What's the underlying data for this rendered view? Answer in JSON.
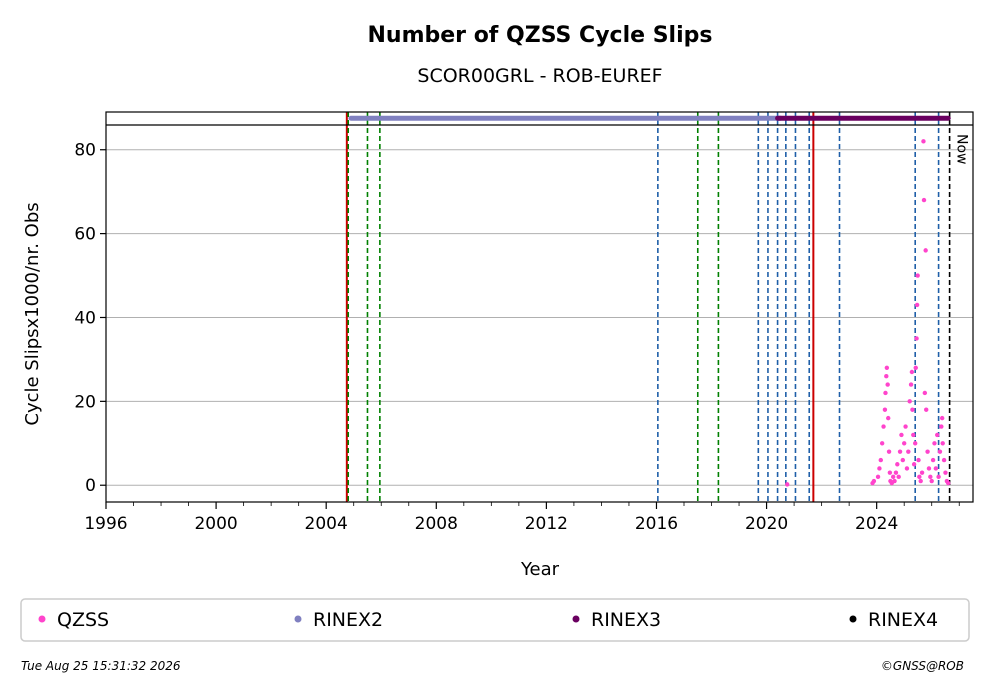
{
  "chart_data": {
    "type": "scatter",
    "title": "Number of QZSS Cycle Slips",
    "subtitle": "SCOR00GRL - ROB-EUREF",
    "xlabel": "Year",
    "ylabel": "Cycle Slipsx1000/nr. Obs",
    "xlim": [
      1996,
      2027.5
    ],
    "ylim": [
      -4,
      89
    ],
    "x_ticks": [
      1996,
      2000,
      2004,
      2008,
      2012,
      2016,
      2020,
      2024
    ],
    "y_ticks": [
      0,
      20,
      40,
      60,
      80
    ],
    "grid": "horizontal",
    "now_label": "Now",
    "now_year": 2026.65,
    "vlines": [
      {
        "x": 2004.75,
        "color": "#cc0000",
        "style": "solid"
      },
      {
        "x": 2004.8,
        "color": "#008000",
        "style": "dashed"
      },
      {
        "x": 2005.5,
        "color": "#008000",
        "style": "dashed"
      },
      {
        "x": 2005.95,
        "color": "#008000",
        "style": "dashed"
      },
      {
        "x": 2016.05,
        "color": "#1f5fa8",
        "style": "dashed"
      },
      {
        "x": 2017.5,
        "color": "#008000",
        "style": "dashed"
      },
      {
        "x": 2018.25,
        "color": "#008000",
        "style": "dashed"
      },
      {
        "x": 2019.7,
        "color": "#1f5fa8",
        "style": "dashed"
      },
      {
        "x": 2020.05,
        "color": "#1f5fa8",
        "style": "dashed"
      },
      {
        "x": 2020.4,
        "color": "#1f5fa8",
        "style": "dashed"
      },
      {
        "x": 2020.7,
        "color": "#1f5fa8",
        "style": "dashed"
      },
      {
        "x": 2021.05,
        "color": "#1f5fa8",
        "style": "dashed"
      },
      {
        "x": 2021.55,
        "color": "#1f5fa8",
        "style": "dashed"
      },
      {
        "x": 2021.7,
        "color": "#cc0000",
        "style": "solid"
      },
      {
        "x": 2022.65,
        "color": "#1f5fa8",
        "style": "dashed"
      },
      {
        "x": 2025.4,
        "color": "#1f5fa8",
        "style": "dashed"
      },
      {
        "x": 2026.25,
        "color": "#1f5fa8",
        "style": "dashed"
      }
    ],
    "rinex_bars": [
      {
        "name": "RINEX2",
        "start": 2004.9,
        "end": 2020.5,
        "color": "#8080c0"
      },
      {
        "name": "RINEX3",
        "start": 2020.4,
        "end": 2026.6,
        "color": "#6a0060"
      }
    ],
    "series": [
      {
        "name": "QZSS",
        "color": "#ff44cc",
        "points": [
          [
            2020.75,
            0.2
          ],
          [
            2023.85,
            0.5
          ],
          [
            2023.9,
            1.0
          ],
          [
            2024.05,
            2
          ],
          [
            2024.1,
            4
          ],
          [
            2024.15,
            6
          ],
          [
            2024.2,
            10
          ],
          [
            2024.25,
            14
          ],
          [
            2024.3,
            18
          ],
          [
            2024.32,
            22
          ],
          [
            2024.35,
            26
          ],
          [
            2024.37,
            28
          ],
          [
            2024.4,
            24
          ],
          [
            2024.42,
            16
          ],
          [
            2024.45,
            8
          ],
          [
            2024.48,
            3
          ],
          [
            2024.5,
            1
          ],
          [
            2024.55,
            0.5
          ],
          [
            2024.6,
            2
          ],
          [
            2024.65,
            1
          ],
          [
            2024.7,
            3
          ],
          [
            2024.75,
            5
          ],
          [
            2024.8,
            2
          ],
          [
            2024.85,
            8
          ],
          [
            2024.9,
            12
          ],
          [
            2024.95,
            6
          ],
          [
            2025.0,
            10
          ],
          [
            2025.05,
            14
          ],
          [
            2025.1,
            4
          ],
          [
            2025.15,
            8
          ],
          [
            2025.2,
            20
          ],
          [
            2025.25,
            24
          ],
          [
            2025.28,
            27
          ],
          [
            2025.3,
            18
          ],
          [
            2025.33,
            12
          ],
          [
            2025.36,
            5
          ],
          [
            2025.4,
            10
          ],
          [
            2025.42,
            28
          ],
          [
            2025.45,
            35
          ],
          [
            2025.47,
            43
          ],
          [
            2025.49,
            50
          ],
          [
            2025.52,
            6
          ],
          [
            2025.55,
            2
          ],
          [
            2025.6,
            1
          ],
          [
            2025.65,
            3
          ],
          [
            2025.7,
            82
          ],
          [
            2025.72,
            68
          ],
          [
            2025.75,
            22
          ],
          [
            2025.78,
            56
          ],
          [
            2025.8,
            18
          ],
          [
            2025.85,
            8
          ],
          [
            2025.9,
            4
          ],
          [
            2025.95,
            2
          ],
          [
            2026.0,
            1
          ],
          [
            2026.05,
            6
          ],
          [
            2026.1,
            10
          ],
          [
            2026.15,
            4
          ],
          [
            2026.2,
            12
          ],
          [
            2026.25,
            2
          ],
          [
            2026.3,
            8
          ],
          [
            2026.35,
            14
          ],
          [
            2026.38,
            16
          ],
          [
            2026.4,
            10
          ],
          [
            2026.45,
            6
          ],
          [
            2026.5,
            3
          ],
          [
            2026.55,
            1
          ],
          [
            2026.6,
            0.5
          ]
        ]
      }
    ],
    "legend": [
      "QZSS",
      "RINEX2",
      "RINEX3",
      "RINEX4"
    ],
    "legend_colors": [
      "#ff44cc",
      "#8080c0",
      "#6a0060",
      "#000000"
    ],
    "legend_position": "bottom"
  },
  "footer": {
    "timestamp": "Tue Aug 25 15:31:32 2026",
    "credit": "©GNSS@ROB"
  }
}
